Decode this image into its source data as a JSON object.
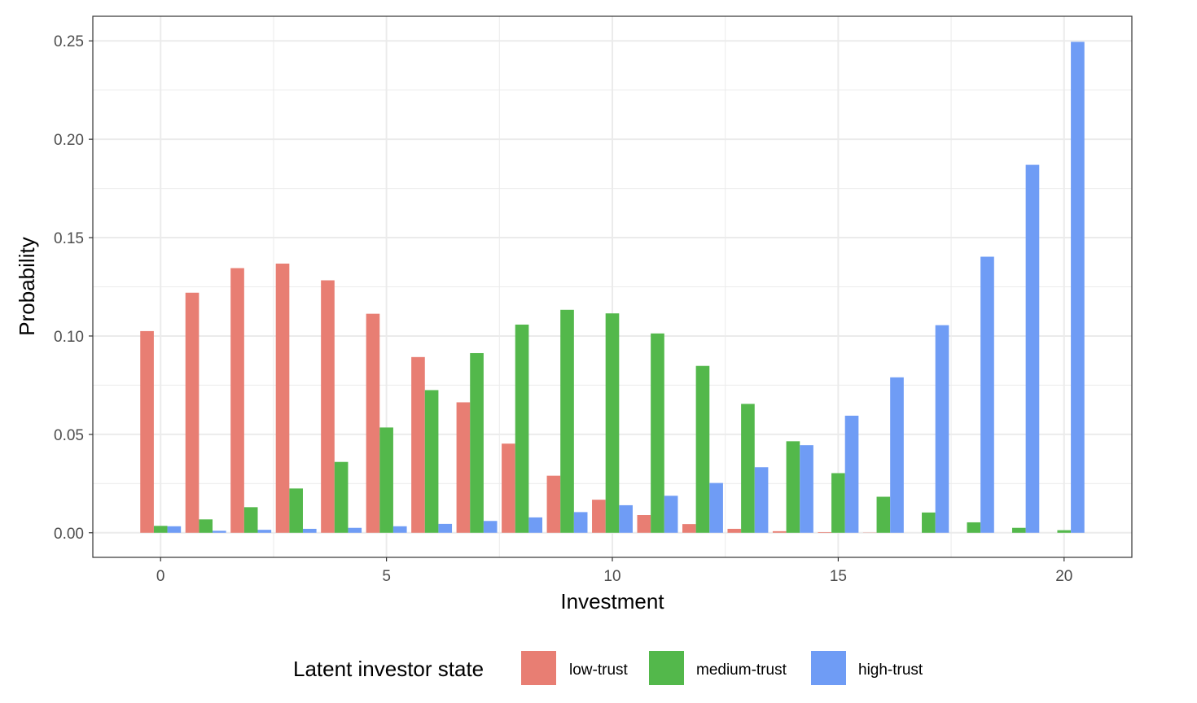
{
  "chart_data": {
    "type": "bar",
    "xlabel": "Investment",
    "ylabel": "Probability",
    "x": [
      0,
      1,
      2,
      3,
      4,
      5,
      6,
      7,
      8,
      9,
      10,
      11,
      12,
      13,
      14,
      15,
      16,
      17,
      18,
      19,
      20
    ],
    "xlim": [
      -1.5,
      21.5
    ],
    "ylim": [
      -0.0125,
      0.2625
    ],
    "x_ticks": [
      0,
      5,
      10,
      15,
      20
    ],
    "x_tick_labels": [
      "0",
      "5",
      "10",
      "15",
      "20"
    ],
    "y_ticks": [
      0,
      0.05,
      0.1,
      0.15,
      0.2,
      0.25
    ],
    "y_tick_labels": [
      "0.00",
      "0.05",
      "0.10",
      "0.15",
      "0.20",
      "0.25"
    ],
    "grid": true,
    "legend": {
      "title": "Latent investor state",
      "position": "bottom"
    },
    "series": [
      {
        "name": "low-trust",
        "color": "#e87e73",
        "values": [
          0.1025,
          0.122,
          0.1345,
          0.1368,
          0.1283,
          0.1113,
          0.0893,
          0.0663,
          0.0453,
          0.029,
          0.0168,
          0.009,
          0.0044,
          0.002,
          0.0008,
          0.0003,
          0.0001,
          0,
          0,
          0,
          0
        ]
      },
      {
        "name": "medium-trust",
        "color": "#53b84b",
        "values": [
          0.0035,
          0.0068,
          0.013,
          0.0225,
          0.036,
          0.0535,
          0.0725,
          0.0913,
          0.1058,
          0.1133,
          0.1115,
          0.1013,
          0.0848,
          0.0655,
          0.0465,
          0.0303,
          0.0183,
          0.0103,
          0.0053,
          0.0025,
          0.0013
        ]
      },
      {
        "name": "high-trust",
        "color": "#6f9cf5",
        "values": [
          0.0033,
          0.001,
          0.0015,
          0.002,
          0.0025,
          0.0033,
          0.0045,
          0.006,
          0.0078,
          0.0105,
          0.014,
          0.0188,
          0.0253,
          0.0333,
          0.0445,
          0.0595,
          0.079,
          0.1055,
          0.1403,
          0.187,
          0.2495
        ]
      }
    ]
  }
}
